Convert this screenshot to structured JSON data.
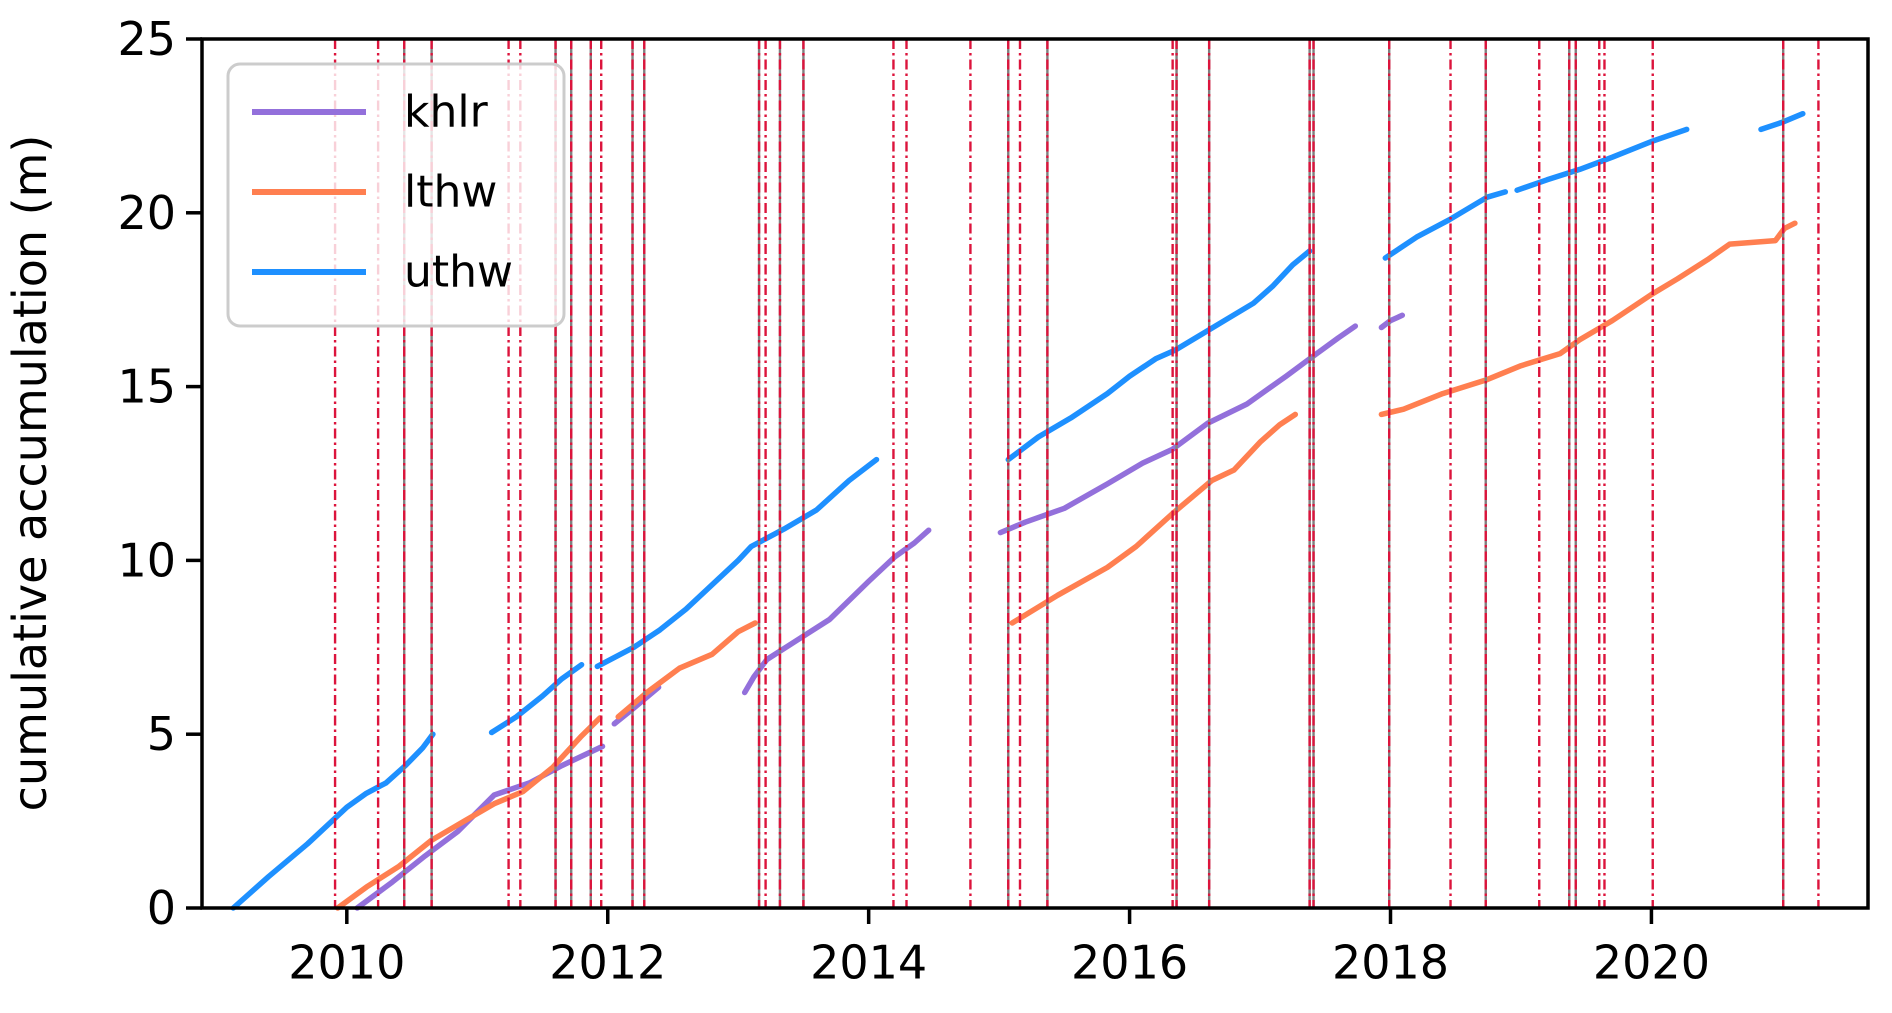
{
  "chart_data": {
    "type": "line",
    "title": "",
    "xlabel": "",
    "ylabel": "cumulative accumulation (m)",
    "xlim": [
      2008.89,
      2021.66
    ],
    "ylim": [
      0,
      25
    ],
    "xticks": [
      2010,
      2012,
      2014,
      2016,
      2018,
      2020
    ],
    "yticks": [
      0,
      5,
      10,
      15,
      20,
      25
    ],
    "grid": false,
    "legend_position": "upper left",
    "series": [
      {
        "name": "khlr",
        "color": "#9370db",
        "segments": [
          [
            [
              2010.08,
              0
            ],
            [
              2010.35,
              0.75
            ],
            [
              2010.6,
              1.5
            ],
            [
              2010.85,
              2.2
            ],
            [
              2011.13,
              3.25
            ],
            [
              2011.4,
              3.6
            ],
            [
              2011.65,
              4.1
            ],
            [
              2011.96,
              4.65
            ]
          ],
          [
            [
              2012.05,
              5.3
            ],
            [
              2012.2,
              5.75
            ],
            [
              2012.39,
              6.35
            ]
          ],
          [
            [
              2013.05,
              6.2
            ],
            [
              2013.12,
              6.65
            ],
            [
              2013.22,
              7.15
            ],
            [
              2013.45,
              7.7
            ],
            [
              2013.7,
              8.3
            ],
            [
              2014.0,
              9.4
            ],
            [
              2014.2,
              10.1
            ],
            [
              2014.35,
              10.5
            ],
            [
              2014.46,
              10.87
            ]
          ],
          [
            [
              2015.01,
              10.8
            ],
            [
              2015.2,
              11.1
            ],
            [
              2015.5,
              11.5
            ],
            [
              2015.83,
              12.2
            ],
            [
              2016.1,
              12.8
            ],
            [
              2016.33,
              13.2
            ],
            [
              2016.6,
              13.95
            ],
            [
              2016.9,
              14.5
            ],
            [
              2017.2,
              15.3
            ],
            [
              2017.38,
              15.8
            ],
            [
              2017.6,
              16.4
            ],
            [
              2017.73,
              16.74
            ]
          ],
          [
            [
              2017.93,
              16.7
            ],
            [
              2018.0,
              16.9
            ],
            [
              2018.09,
              17.05
            ]
          ]
        ]
      },
      {
        "name": "lthw",
        "color": "#ff7f50",
        "segments": [
          [
            [
              2009.93,
              0
            ],
            [
              2010.15,
              0.6
            ],
            [
              2010.4,
              1.2
            ],
            [
              2010.65,
              1.95
            ],
            [
              2010.9,
              2.5
            ],
            [
              2011.13,
              3.0
            ],
            [
              2011.35,
              3.35
            ],
            [
              2011.58,
              4.05
            ],
            [
              2011.8,
              4.95
            ],
            [
              2011.94,
              5.47
            ]
          ],
          [
            [
              2012.08,
              5.5
            ],
            [
              2012.3,
              6.2
            ],
            [
              2012.55,
              6.9
            ],
            [
              2012.8,
              7.3
            ],
            [
              2013.0,
              7.95
            ],
            [
              2013.13,
              8.2
            ]
          ],
          [
            [
              2015.1,
              8.2
            ],
            [
              2015.45,
              9.0
            ],
            [
              2015.83,
              9.8
            ],
            [
              2016.05,
              10.4
            ],
            [
              2016.33,
              11.35
            ],
            [
              2016.63,
              12.3
            ],
            [
              2016.8,
              12.6
            ],
            [
              2017.0,
              13.4
            ],
            [
              2017.15,
              13.9
            ],
            [
              2017.27,
              14.2
            ]
          ],
          [
            [
              2017.93,
              14.2
            ],
            [
              2018.1,
              14.35
            ],
            [
              2018.4,
              14.8
            ],
            [
              2018.74,
              15.2
            ],
            [
              2019.0,
              15.6
            ],
            [
              2019.3,
              15.95
            ],
            [
              2019.45,
              16.35
            ],
            [
              2019.7,
              16.9
            ],
            [
              2020.0,
              17.65
            ],
            [
              2020.2,
              18.1
            ],
            [
              2020.43,
              18.65
            ],
            [
              2020.6,
              19.1
            ],
            [
              2020.95,
              19.2
            ],
            [
              2021.02,
              19.55
            ],
            [
              2021.1,
              19.7
            ]
          ]
        ]
      },
      {
        "name": "uthw",
        "color": "#1e90ff",
        "segments": [
          [
            [
              2009.13,
              0
            ],
            [
              2009.4,
              0.9
            ],
            [
              2009.7,
              1.85
            ],
            [
              2009.9,
              2.55
            ],
            [
              2010.0,
              2.9
            ],
            [
              2010.15,
              3.3
            ],
            [
              2010.3,
              3.6
            ],
            [
              2010.45,
              4.1
            ],
            [
              2010.58,
              4.6
            ],
            [
              2010.66,
              5.0
            ]
          ],
          [
            [
              2011.11,
              5.05
            ],
            [
              2011.3,
              5.5
            ],
            [
              2011.5,
              6.1
            ],
            [
              2011.65,
              6.6
            ],
            [
              2011.8,
              7.0
            ]
          ],
          [
            [
              2011.92,
              6.95
            ],
            [
              2012.2,
              7.5
            ],
            [
              2012.4,
              8.0
            ],
            [
              2012.6,
              8.6
            ],
            [
              2012.8,
              9.3
            ],
            [
              2013.0,
              10.0
            ],
            [
              2013.1,
              10.4
            ],
            [
              2013.35,
              10.9
            ],
            [
              2013.6,
              11.45
            ],
            [
              2013.85,
              12.3
            ],
            [
              2014.06,
              12.9
            ]
          ],
          [
            [
              2015.07,
              12.9
            ],
            [
              2015.3,
              13.55
            ],
            [
              2015.55,
              14.1
            ],
            [
              2015.83,
              14.8
            ],
            [
              2016.0,
              15.3
            ],
            [
              2016.2,
              15.8
            ],
            [
              2016.35,
              16.05
            ],
            [
              2016.55,
              16.5
            ],
            [
              2016.75,
              16.95
            ],
            [
              2016.95,
              17.4
            ],
            [
              2017.1,
              17.9
            ],
            [
              2017.25,
              18.5
            ],
            [
              2017.38,
              18.9
            ]
          ],
          [
            [
              2017.96,
              18.7
            ],
            [
              2018.2,
              19.3
            ],
            [
              2018.45,
              19.8
            ],
            [
              2018.74,
              20.45
            ],
            [
              2018.88,
              20.6
            ]
          ],
          [
            [
              2018.97,
              20.65
            ],
            [
              2019.2,
              20.95
            ],
            [
              2019.45,
              21.25
            ],
            [
              2019.7,
              21.6
            ],
            [
              2020.0,
              22.05
            ],
            [
              2020.27,
              22.4
            ]
          ],
          [
            [
              2020.84,
              22.4
            ],
            [
              2021.0,
              22.6
            ],
            [
              2021.16,
              22.85
            ]
          ]
        ]
      }
    ],
    "vlines": {
      "dashdot_color": "#dc143c",
      "underlay_color": "#7f7f7f",
      "items": [
        {
          "x": 2009.91,
          "style": "dashdot"
        },
        {
          "x": 2010.24,
          "style": "dashdot"
        },
        {
          "x": 2010.44,
          "style": "solid"
        },
        {
          "x": 2010.65,
          "style": "solid"
        },
        {
          "x": 2011.24,
          "style": "dashdot"
        },
        {
          "x": 2011.33,
          "style": "dashdot"
        },
        {
          "x": 2011.6,
          "style": "solid"
        },
        {
          "x": 2011.72,
          "style": "solid"
        },
        {
          "x": 2011.87,
          "style": "solid"
        },
        {
          "x": 2011.95,
          "style": "dashdot"
        },
        {
          "x": 2012.19,
          "style": "solid"
        },
        {
          "x": 2012.28,
          "style": "solid"
        },
        {
          "x": 2013.16,
          "style": "solid"
        },
        {
          "x": 2013.21,
          "style": "dashdot"
        },
        {
          "x": 2013.32,
          "style": "solid"
        },
        {
          "x": 2013.5,
          "style": "solid"
        },
        {
          "x": 2014.19,
          "style": "dashdot"
        },
        {
          "x": 2014.29,
          "style": "dashdot"
        },
        {
          "x": 2014.78,
          "style": "dashdot"
        },
        {
          "x": 2015.07,
          "style": "solid"
        },
        {
          "x": 2015.16,
          "style": "dashdot"
        },
        {
          "x": 2015.37,
          "style": "solid"
        },
        {
          "x": 2016.33,
          "style": "dashdot"
        },
        {
          "x": 2016.36,
          "style": "solid"
        },
        {
          "x": 2016.61,
          "style": "solid"
        },
        {
          "x": 2017.38,
          "style": "solid"
        },
        {
          "x": 2017.41,
          "style": "solid"
        },
        {
          "x": 2017.99,
          "style": "solid"
        },
        {
          "x": 2018.46,
          "style": "dashdot"
        },
        {
          "x": 2018.73,
          "style": "solid"
        },
        {
          "x": 2019.14,
          "style": "dashdot"
        },
        {
          "x": 2019.37,
          "style": "solid"
        },
        {
          "x": 2019.42,
          "style": "solid"
        },
        {
          "x": 2019.6,
          "style": "dashdot"
        },
        {
          "x": 2019.64,
          "style": "dashdot"
        },
        {
          "x": 2020.01,
          "style": "dashdot"
        },
        {
          "x": 2021.01,
          "style": "solid"
        },
        {
          "x": 2021.28,
          "style": "dashdot"
        }
      ]
    }
  },
  "legend": {
    "entries": [
      {
        "label": "khlr",
        "color": "#9370db"
      },
      {
        "label": "lthw",
        "color": "#ff7f50"
      },
      {
        "label": "uthw",
        "color": "#1e90ff"
      }
    ]
  }
}
